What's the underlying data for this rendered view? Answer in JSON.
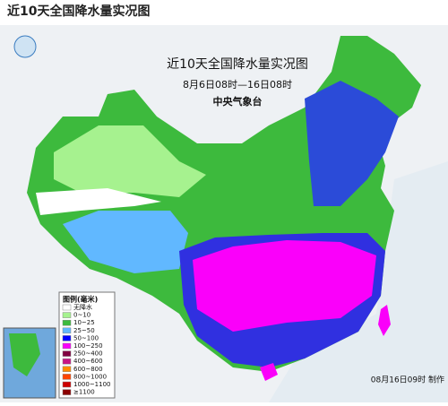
{
  "header": {
    "title": "近10天全国降水量实况图"
  },
  "map": {
    "title": "近10天全国降水量实况图",
    "subtitle": "8月6日08时—16日08时",
    "agency": "中央气象台",
    "footer": "08月16日09时 制作"
  },
  "legend": {
    "title": "图例(毫米)",
    "items": [
      {
        "label": "无降水",
        "color": "#ffffff"
      },
      {
        "label": "0~10",
        "color": "#a6f28f"
      },
      {
        "label": "10~25",
        "color": "#3dba3d"
      },
      {
        "label": "25~50",
        "color": "#61b8ff"
      },
      {
        "label": "50~100",
        "color": "#0000ff"
      },
      {
        "label": "100~250",
        "color": "#fa00fa"
      },
      {
        "label": "250~400",
        "color": "#800040"
      },
      {
        "label": "400~600",
        "color": "#c71585"
      },
      {
        "label": "600~800",
        "color": "#ff8c00"
      },
      {
        "label": "800~1000",
        "color": "#ff4500"
      },
      {
        "label": "1000~1100",
        "color": "#cd0000"
      },
      {
        "label": "≥1100",
        "color": "#8b0000"
      }
    ]
  }
}
